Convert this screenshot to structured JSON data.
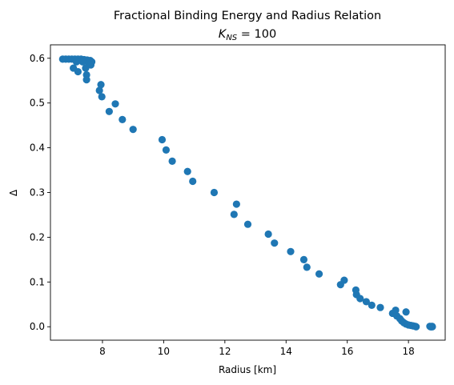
{
  "chart_data": {
    "type": "scatter",
    "title_line1": "Fractional Binding Energy and Radius Relation",
    "title_line2_prefix": "K",
    "title_line2_sub": "NS",
    "title_line2_suffix": " =  100",
    "xlabel": "Radius [km]",
    "ylabel": "Δ",
    "xlim": [
      6.3,
      19.2
    ],
    "ylim": [
      -0.03,
      0.63
    ],
    "xticks": [
      8,
      10,
      12,
      14,
      16,
      18
    ],
    "yticks": [
      0.0,
      0.1,
      0.2,
      0.3,
      0.4,
      0.5,
      0.6
    ],
    "ytick_labels": [
      "0.0",
      "0.1",
      "0.2",
      "0.3",
      "0.4",
      "0.5",
      "0.6"
    ],
    "grid": false,
    "marker_color": "#1f77b4",
    "points": [
      [
        6.7,
        0.598
      ],
      [
        6.8,
        0.598
      ],
      [
        6.9,
        0.598
      ],
      [
        7.0,
        0.598
      ],
      [
        7.1,
        0.598
      ],
      [
        7.2,
        0.598
      ],
      [
        7.3,
        0.598
      ],
      [
        7.4,
        0.597
      ],
      [
        7.5,
        0.596
      ],
      [
        7.6,
        0.595
      ],
      [
        7.65,
        0.592
      ],
      [
        7.15,
        0.592
      ],
      [
        7.35,
        0.592
      ],
      [
        7.55,
        0.588
      ],
      [
        7.62,
        0.585
      ],
      [
        7.05,
        0.578
      ],
      [
        7.45,
        0.578
      ],
      [
        7.2,
        0.57
      ],
      [
        7.48,
        0.563
      ],
      [
        7.48,
        0.552
      ],
      [
        7.95,
        0.541
      ],
      [
        7.9,
        0.528
      ],
      [
        7.98,
        0.514
      ],
      [
        8.42,
        0.498
      ],
      [
        8.22,
        0.481
      ],
      [
        8.65,
        0.463
      ],
      [
        9.0,
        0.441
      ],
      [
        9.95,
        0.418
      ],
      [
        10.08,
        0.395
      ],
      [
        10.28,
        0.37
      ],
      [
        10.78,
        0.347
      ],
      [
        10.95,
        0.325
      ],
      [
        11.65,
        0.3
      ],
      [
        12.38,
        0.274
      ],
      [
        12.3,
        0.251
      ],
      [
        12.75,
        0.229
      ],
      [
        13.42,
        0.207
      ],
      [
        13.62,
        0.187
      ],
      [
        14.15,
        0.168
      ],
      [
        14.58,
        0.15
      ],
      [
        14.68,
        0.133
      ],
      [
        15.08,
        0.118
      ],
      [
        15.78,
        0.094
      ],
      [
        15.9,
        0.104
      ],
      [
        16.28,
        0.082
      ],
      [
        16.3,
        0.072
      ],
      [
        16.42,
        0.063
      ],
      [
        16.62,
        0.056
      ],
      [
        16.8,
        0.048
      ],
      [
        17.08,
        0.043
      ],
      [
        17.48,
        0.03
      ],
      [
        17.58,
        0.037
      ],
      [
        17.62,
        0.024
      ],
      [
        17.72,
        0.018
      ],
      [
        17.78,
        0.013
      ],
      [
        17.92,
        0.033
      ],
      [
        17.85,
        0.009
      ],
      [
        17.92,
        0.006
      ],
      [
        18.0,
        0.004
      ],
      [
        18.08,
        0.003
      ],
      [
        18.15,
        0.002
      ],
      [
        18.22,
        0.001
      ],
      [
        18.25,
        0.0
      ],
      [
        18.72,
        0.0
      ],
      [
        18.75,
        0.0
      ],
      [
        18.78,
        0.0
      ],
      [
        18.7,
        0.001
      ],
      [
        18.77,
        0.001
      ]
    ]
  }
}
